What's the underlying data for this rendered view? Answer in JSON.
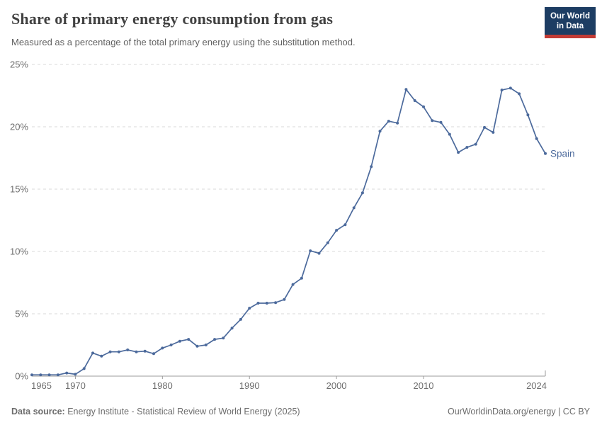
{
  "header": {
    "title": "Share of primary energy consumption from gas",
    "subtitle": "Measured as a percentage of the total primary energy using the substitution method.",
    "logo": {
      "line1": "Our World",
      "line2": "in Data"
    }
  },
  "chart_data": {
    "type": "line",
    "title": "Share of primary energy consumption from gas",
    "xlabel": "",
    "ylabel": "",
    "xlim": [
      1965,
      2024
    ],
    "ylim": [
      0,
      25
    ],
    "yticks": [
      0,
      5,
      10,
      15,
      20,
      25
    ],
    "ytick_suffix": "%",
    "xticks": [
      1965,
      1970,
      1980,
      1990,
      2000,
      2010,
      2024
    ],
    "grid": "horizontal-dashed",
    "legend_position": "end-of-line",
    "series": [
      {
        "name": "Spain",
        "color": "#4c6a9c",
        "x": [
          1965,
          1966,
          1967,
          1968,
          1969,
          1970,
          1971,
          1972,
          1973,
          1974,
          1975,
          1976,
          1977,
          1978,
          1979,
          1980,
          1981,
          1982,
          1983,
          1984,
          1985,
          1986,
          1987,
          1988,
          1989,
          1990,
          1991,
          1992,
          1993,
          1994,
          1995,
          1996,
          1997,
          1998,
          1999,
          2000,
          2001,
          2002,
          2003,
          2004,
          2005,
          2006,
          2007,
          2008,
          2009,
          2010,
          2011,
          2012,
          2013,
          2014,
          2015,
          2016,
          2017,
          2018,
          2019,
          2020,
          2021,
          2022,
          2023,
          2024
        ],
        "values": [
          0.1,
          0.1,
          0.1,
          0.1,
          0.25,
          0.15,
          0.6,
          1.85,
          1.6,
          1.95,
          1.95,
          2.1,
          1.95,
          2.0,
          1.8,
          2.25,
          2.5,
          2.8,
          2.95,
          2.4,
          2.5,
          2.95,
          3.05,
          3.85,
          4.55,
          5.45,
          5.85,
          5.85,
          5.9,
          6.15,
          7.35,
          7.85,
          10.05,
          9.85,
          10.7,
          11.7,
          12.15,
          13.5,
          14.7,
          16.8,
          19.65,
          20.45,
          20.3,
          23.0,
          22.1,
          21.6,
          20.5,
          20.35,
          19.4,
          17.95,
          18.35,
          18.6,
          19.95,
          19.55,
          22.95,
          23.1,
          22.65,
          20.95,
          19.05,
          17.85
        ]
      }
    ]
  },
  "footer": {
    "source_label": "Data source:",
    "source_text": " Energy Institute - Statistical Review of World Energy (2025)",
    "credit": "OurWorldinData.org/energy | CC BY"
  },
  "colors": {
    "line": "#4c6a9c",
    "grid": "#dadada",
    "axis": "#9b9b9b",
    "tick_label": "#6e6e6e",
    "logo_bg": "#1d3d63",
    "logo_stripe": "#c23b35"
  }
}
